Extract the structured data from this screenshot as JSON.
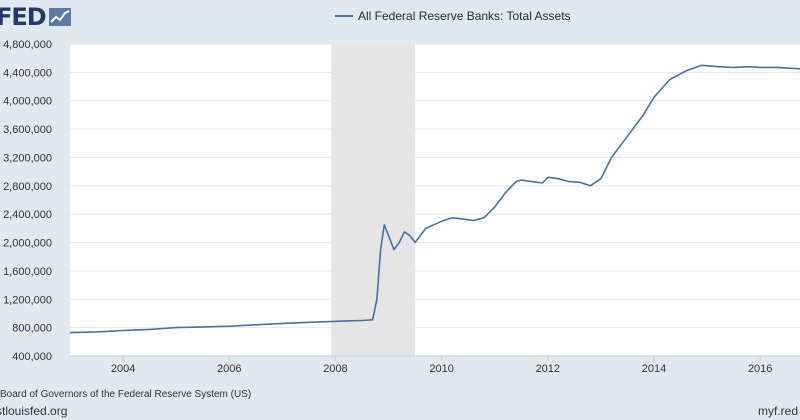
{
  "logo": {
    "text": "FED",
    "icon": "line-chart-icon"
  },
  "source": "Board of Governors of the Federal Reserve System (US)",
  "site_left": "stlouisfed.org",
  "site_right": "myf.red",
  "colors": {
    "series": "#4572a7",
    "plot_bg": "#ffffff",
    "page_bg": "#e1e9f0",
    "recession": "#e5e5e5",
    "grid": "#e6e6e6"
  },
  "chart_data": {
    "type": "line",
    "title": "",
    "xlabel": "",
    "ylabel": "",
    "xlim": [
      2003.0,
      2016.75
    ],
    "ylim": [
      400000,
      4800000
    ],
    "y_ticks": [
      400000,
      800000,
      1200000,
      1600000,
      2000000,
      2400000,
      2800000,
      3200000,
      3600000,
      4000000,
      4400000,
      4800000
    ],
    "y_tick_labels": [
      "400,000",
      "800,000",
      "1,200,000",
      "1,600,000",
      "2,000,000",
      "2,400,000",
      "2,800,000",
      "3,200,000",
      "3,600,000",
      "4,000,000",
      "4,400,000",
      "4,800,000"
    ],
    "x_ticks": [
      2004,
      2006,
      2008,
      2010,
      2012,
      2014,
      2016
    ],
    "x_tick_labels": [
      "2004",
      "2006",
      "2008",
      "2010",
      "2012",
      "2014",
      "2016"
    ],
    "grid": true,
    "legend": "top-center",
    "recession_shading": [
      [
        2007.92,
        2009.5
      ]
    ],
    "series": [
      {
        "name": "All Federal Reserve Banks: Total Assets",
        "x": [
          2003.0,
          2003.5,
          2004.0,
          2004.5,
          2005.0,
          2005.5,
          2006.0,
          2006.5,
          2007.0,
          2007.5,
          2007.9,
          2008.2,
          2008.5,
          2008.7,
          2008.78,
          2008.85,
          2008.92,
          2009.0,
          2009.1,
          2009.2,
          2009.3,
          2009.4,
          2009.5,
          2009.6,
          2009.7,
          2009.85,
          2010.0,
          2010.2,
          2010.4,
          2010.6,
          2010.8,
          2011.0,
          2011.2,
          2011.4,
          2011.5,
          2011.7,
          2011.9,
          2012.0,
          2012.2,
          2012.4,
          2012.6,
          2012.8,
          2013.0,
          2013.2,
          2013.5,
          2013.8,
          2014.0,
          2014.3,
          2014.6,
          2014.9,
          2015.2,
          2015.5,
          2015.8,
          2016.0,
          2016.3,
          2016.75
        ],
        "values": [
          730000,
          740000,
          760000,
          775000,
          800000,
          810000,
          820000,
          840000,
          860000,
          875000,
          885000,
          895000,
          900000,
          910000,
          1200000,
          1900000,
          2250000,
          2100000,
          1900000,
          2000000,
          2150000,
          2100000,
          2000000,
          2100000,
          2200000,
          2250000,
          2300000,
          2350000,
          2330000,
          2310000,
          2350000,
          2500000,
          2700000,
          2860000,
          2880000,
          2860000,
          2840000,
          2920000,
          2900000,
          2860000,
          2850000,
          2800000,
          2900000,
          3200000,
          3500000,
          3800000,
          4050000,
          4300000,
          4420000,
          4500000,
          4480000,
          4470000,
          4480000,
          4470000,
          4470000,
          4450000
        ]
      }
    ]
  }
}
